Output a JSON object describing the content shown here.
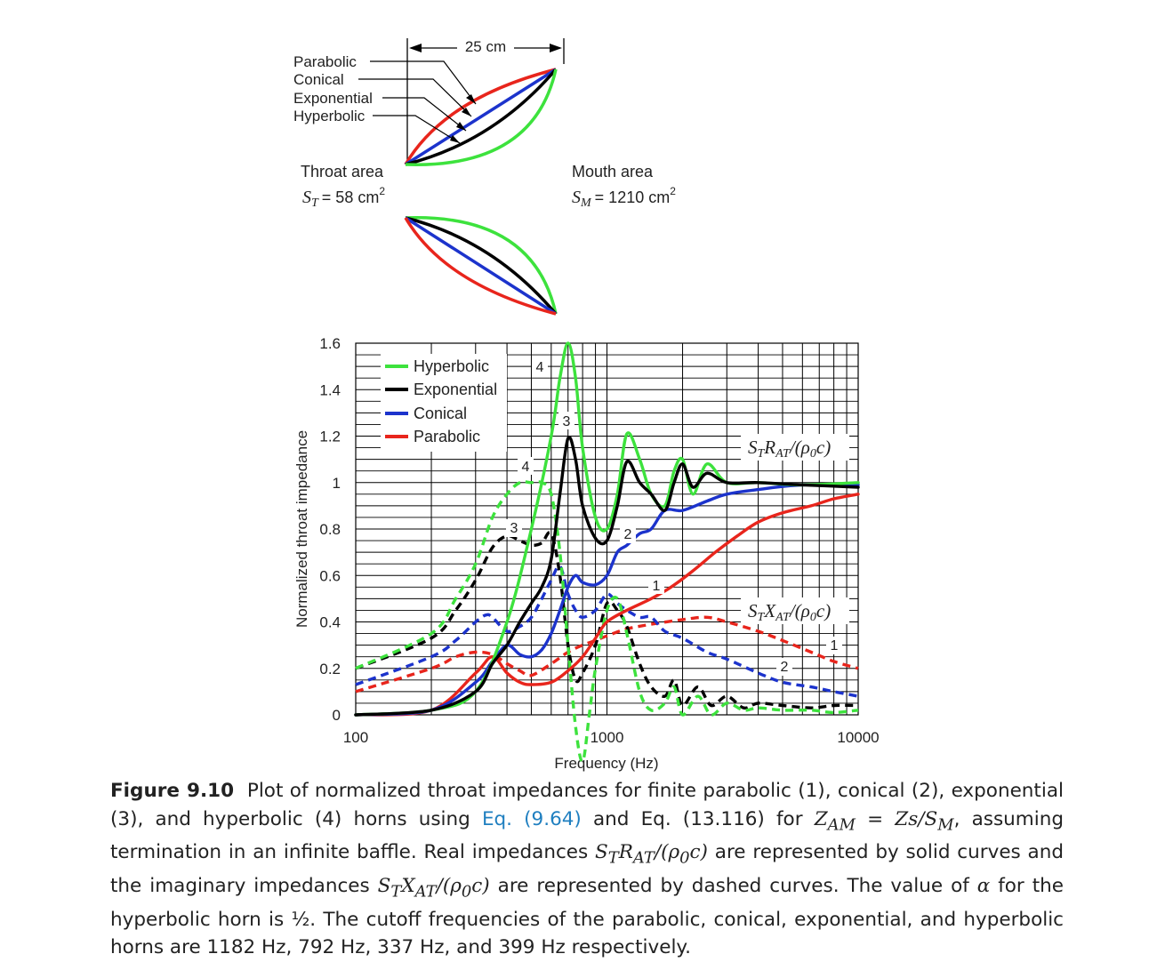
{
  "diagram": {
    "dimension_label": "25 cm",
    "horn_labels": [
      "Parabolic",
      "Conical",
      "Exponential",
      "Hyperbolic"
    ],
    "throat": {
      "title": "Throat area",
      "symbol": "S",
      "subscript": "T",
      "value": "= 58 cm",
      "sup": "2"
    },
    "mouth": {
      "title": "Mouth area",
      "symbol": "S",
      "subscript": "M",
      "value": "= 1210 cm",
      "sup": "2"
    },
    "colors": {
      "parabolic": "#e8251c",
      "conical": "#1c33cc",
      "exponential": "#000000",
      "hyperbolic": "#3de23d"
    }
  },
  "chart_data": {
    "type": "line",
    "x_scale": "log",
    "xlim": [
      100,
      10000
    ],
    "ylim": [
      0,
      1.6
    ],
    "xlabel": "Frequency (Hz)",
    "ylabel": "Normalized throat impedance",
    "x_ticks": [
      "100",
      "1000",
      "10000"
    ],
    "y_ticks": [
      "0",
      "0.2",
      "0.4",
      "0.6",
      "0.8",
      "1",
      "1.2",
      "1.4",
      "1.6"
    ],
    "grid": true,
    "legend_position": "top-left",
    "legend": [
      "Hyperbolic",
      "Exponential",
      "Conical",
      "Parabolic"
    ],
    "annotations": {
      "real_label": {
        "pre": "S",
        "sub1": "T",
        "mid": "R",
        "sub2": "AT",
        "post": "/(ρ",
        "sub3": "0",
        "tail": "c)"
      },
      "imag_label": {
        "pre": "S",
        "sub1": "T",
        "mid": "X",
        "sub2": "AT",
        "post": "/(ρ",
        "sub3": "0",
        "tail": "c)"
      },
      "curve_numbers": [
        "4",
        "3",
        "4",
        "3",
        "2",
        "1",
        "1",
        "2"
      ]
    },
    "series": [
      {
        "name": "Hyperbolic",
        "part": "real",
        "style": "solid",
        "color": "#3de23d",
        "x": [
          100,
          200,
          300,
          400,
          500,
          600,
          650,
          700,
          750,
          800,
          900,
          1000,
          1100,
          1200,
          1350,
          1500,
          1700,
          1850,
          2000,
          2200,
          2500,
          3000,
          4000,
          6000,
          10000
        ],
        "y": [
          0,
          0.02,
          0.1,
          0.4,
          0.8,
          1.2,
          1.45,
          1.6,
          1.45,
          1.15,
          0.85,
          0.8,
          0.95,
          1.21,
          1.1,
          0.95,
          0.9,
          1.05,
          1.1,
          0.95,
          1.08,
          1.0,
          1.0,
          0.99,
          1.0
        ]
      },
      {
        "name": "Exponential",
        "part": "real",
        "style": "solid",
        "color": "#000000",
        "x": [
          100,
          200,
          300,
          350,
          400,
          450,
          500,
          550,
          600,
          650,
          700,
          750,
          800,
          900,
          1000,
          1100,
          1200,
          1350,
          1500,
          1700,
          1850,
          2000,
          2200,
          2500,
          3000,
          4000,
          6000,
          10000
        ],
        "y": [
          0,
          0.02,
          0.1,
          0.22,
          0.3,
          0.4,
          0.48,
          0.55,
          0.67,
          0.95,
          1.19,
          1.1,
          0.9,
          0.76,
          0.75,
          0.9,
          1.09,
          1.0,
          0.95,
          0.88,
          1.0,
          1.08,
          0.98,
          1.04,
          1.0,
          1.0,
          0.99,
          0.98
        ]
      },
      {
        "name": "Conical",
        "part": "real",
        "style": "solid",
        "color": "#1c33cc",
        "x": [
          100,
          200,
          300,
          350,
          400,
          450,
          500,
          550,
          600,
          650,
          700,
          750,
          800,
          900,
          1000,
          1100,
          1200,
          1350,
          1500,
          1700,
          2000,
          2500,
          3000,
          4000,
          6000,
          10000
        ],
        "y": [
          0,
          0.02,
          0.14,
          0.23,
          0.3,
          0.26,
          0.25,
          0.28,
          0.35,
          0.45,
          0.55,
          0.6,
          0.57,
          0.56,
          0.6,
          0.7,
          0.73,
          0.78,
          0.8,
          0.88,
          0.88,
          0.92,
          0.95,
          0.97,
          0.99,
          0.99
        ]
      },
      {
        "name": "Parabolic",
        "part": "real",
        "style": "solid",
        "color": "#e8251c",
        "x": [
          100,
          200,
          300,
          350,
          400,
          450,
          500,
          600,
          700,
          800,
          900,
          1000,
          1200,
          1500,
          1800,
          2200,
          2700,
          3300,
          4000,
          5000,
          6500,
          8000,
          10000
        ],
        "y": [
          0,
          0.02,
          0.18,
          0.25,
          0.18,
          0.14,
          0.13,
          0.14,
          0.19,
          0.25,
          0.33,
          0.4,
          0.45,
          0.5,
          0.55,
          0.62,
          0.7,
          0.77,
          0.83,
          0.87,
          0.9,
          0.93,
          0.95
        ]
      },
      {
        "name": "Hyperbolic",
        "part": "imaginary",
        "style": "dashed",
        "color": "#3de23d",
        "x": [
          100,
          200,
          250,
          300,
          350,
          400,
          450,
          500,
          550,
          600,
          650,
          700,
          750,
          800,
          850,
          900,
          1000,
          1100,
          1200,
          1350,
          1500,
          1700,
          1850,
          2000,
          2300,
          2600,
          3000,
          3500,
          4000,
          5000,
          6500,
          8000,
          10000
        ],
        "y": [
          0.2,
          0.35,
          0.5,
          0.65,
          0.85,
          0.95,
          1.0,
          1.0,
          1.0,
          0.95,
          0.7,
          0.3,
          -0.05,
          -0.2,
          0.0,
          0.2,
          0.45,
          0.5,
          0.35,
          0.1,
          0.02,
          0.05,
          0.12,
          0.0,
          0.08,
          0.0,
          0.05,
          0.02,
          0.03,
          0.02,
          0.02,
          0.01,
          0.02
        ]
      },
      {
        "name": "Exponential",
        "part": "imaginary",
        "style": "dashed",
        "color": "#000000",
        "x": [
          100,
          200,
          250,
          300,
          350,
          400,
          450,
          500,
          550,
          600,
          650,
          700,
          750,
          800,
          900,
          1000,
          1100,
          1200,
          1350,
          1500,
          1700,
          1850,
          2000,
          2300,
          2600,
          3000,
          3500,
          4000,
          5000,
          6500,
          8000,
          10000
        ],
        "y": [
          0.2,
          0.33,
          0.45,
          0.58,
          0.72,
          0.77,
          0.75,
          0.73,
          0.74,
          0.78,
          0.6,
          0.3,
          0.15,
          0.18,
          0.3,
          0.48,
          0.45,
          0.38,
          0.22,
          0.12,
          0.08,
          0.15,
          0.04,
          0.12,
          0.04,
          0.08,
          0.03,
          0.05,
          0.04,
          0.03,
          0.04,
          0.04
        ]
      },
      {
        "name": "Conical",
        "part": "imaginary",
        "style": "dashed",
        "color": "#1c33cc",
        "x": [
          100,
          200,
          250,
          300,
          330,
          350,
          400,
          450,
          500,
          550,
          600,
          650,
          700,
          750,
          800,
          900,
          1000,
          1100,
          1200,
          1350,
          1500,
          1700,
          2000,
          2500,
          3000,
          4000,
          5000,
          6500,
          8000,
          10000
        ],
        "y": [
          0.13,
          0.25,
          0.32,
          0.4,
          0.43,
          0.42,
          0.36,
          0.38,
          0.42,
          0.5,
          0.58,
          0.64,
          0.52,
          0.45,
          0.42,
          0.45,
          0.52,
          0.48,
          0.45,
          0.42,
          0.42,
          0.36,
          0.33,
          0.27,
          0.24,
          0.18,
          0.14,
          0.12,
          0.1,
          0.08
        ]
      },
      {
        "name": "Parabolic",
        "part": "imaginary",
        "style": "dashed",
        "color": "#e8251c",
        "x": [
          100,
          200,
          250,
          300,
          350,
          400,
          450,
          500,
          600,
          700,
          800,
          900,
          1000,
          1200,
          1500,
          2000,
          2500,
          3000,
          4000,
          5000,
          6500,
          8000,
          10000
        ],
        "y": [
          0.1,
          0.2,
          0.25,
          0.27,
          0.26,
          0.22,
          0.19,
          0.17,
          0.22,
          0.27,
          0.3,
          0.32,
          0.34,
          0.37,
          0.39,
          0.41,
          0.42,
          0.4,
          0.36,
          0.32,
          0.27,
          0.23,
          0.2
        ]
      }
    ]
  },
  "caption": {
    "label": "Figure 9.10",
    "text_1": "Plot of normalized throat impedances for finite parabolic (1), conical (2), exponential (3), and hyperbolic (4) horns using ",
    "eq_link": "Eq. (9.64)",
    "text_2": " and Eq. (13.116) for ",
    "math_1": "Z",
    "math_1_sub": "AM",
    "text_3": " = ",
    "math_2": "Zs/S",
    "math_2_sub": "M",
    "text_4": ", assuming termination in an infinite baffle. Real impedances ",
    "math_3": "S",
    "math_3_sub": "T",
    "math_3b": "R",
    "math_3b_sub": "AT",
    "math_3c": "/(ρ",
    "math_3c_sub": "0",
    "math_3d": "c)",
    "text_5": " are represented by solid curves and the imaginary impedances ",
    "math_4": "S",
    "math_4_sub": "T",
    "math_4b": "X",
    "math_4b_sub": "AT",
    "math_4c": "/(ρ",
    "math_4c_sub": "0",
    "math_4d": "c)",
    "text_6": " are represented by dashed curves. The value of ",
    "math_5": "α",
    "text_7": " for the hyperbolic horn is ½. The cutoff frequencies of the parabolic, conical, exponential, and hyperbolic horns are 1182 Hz, 792 Hz, 337 Hz, and 399 Hz respectively."
  }
}
